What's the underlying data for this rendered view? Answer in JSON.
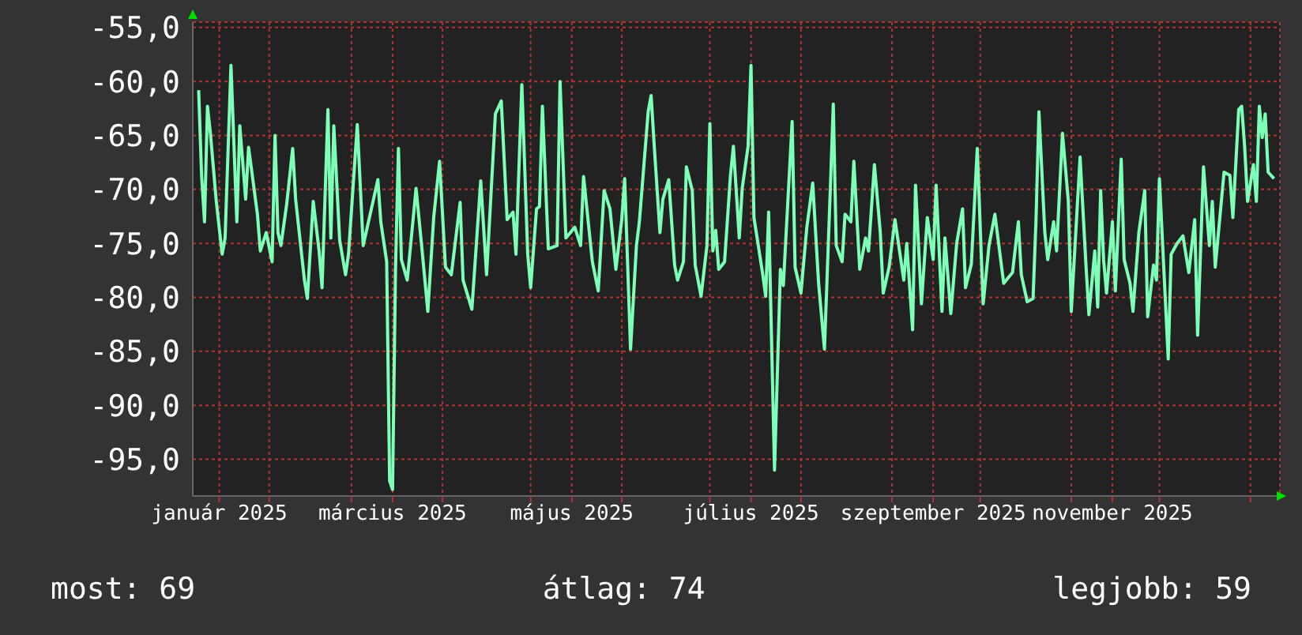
{
  "chart_data": {
    "type": "line",
    "annotations": [
      "most: 69",
      "átlag: 74",
      "legjobb: 59"
    ],
    "xlim": [
      "2025-01-06",
      "2026-01-11"
    ],
    "xticks": [
      {
        "value": "2025-01-15",
        "label": "január 2025"
      },
      {
        "value": "2025-02-01",
        "label": null
      },
      {
        "value": "2025-03-01",
        "label": null
      },
      {
        "value": "2025-03-15",
        "label": "március 2025"
      },
      {
        "value": "2025-04-01",
        "label": null
      },
      {
        "value": "2025-05-01",
        "label": null
      },
      {
        "value": "2025-05-15",
        "label": "május 2025"
      },
      {
        "value": "2025-06-01",
        "label": null
      },
      {
        "value": "2025-07-01",
        "label": null
      },
      {
        "value": "2025-07-15",
        "label": "július 2025"
      },
      {
        "value": "2025-08-01",
        "label": null
      },
      {
        "value": "2025-09-01",
        "label": null
      },
      {
        "value": "2025-09-15",
        "label": "szeptember 2025"
      },
      {
        "value": "2025-10-01",
        "label": null
      },
      {
        "value": "2025-11-01",
        "label": null
      },
      {
        "value": "2025-11-15",
        "label": "november 2025"
      },
      {
        "value": "2025-12-01",
        "label": null
      },
      {
        "value": "2026-01-01",
        "label": null
      }
    ],
    "ylim": [
      -98.4,
      -54.5
    ],
    "yticks": [
      {
        "value": -55,
        "label": "-55,0"
      },
      {
        "value": -60,
        "label": "-60,0"
      },
      {
        "value": -65,
        "label": "-65,0"
      },
      {
        "value": -70,
        "label": "-70,0"
      },
      {
        "value": -75,
        "label": "-75,0"
      },
      {
        "value": -80,
        "label": "-80,0"
      },
      {
        "value": -85,
        "label": "-85,0"
      },
      {
        "value": -90,
        "label": "-90,0"
      },
      {
        "value": -95,
        "label": "-95,0"
      }
    ],
    "grid": true,
    "x": [
      "2025-01-08",
      "2025-01-09",
      "2025-01-10",
      "2025-01-11",
      "2025-01-12",
      "2025-01-14",
      "2025-01-16",
      "2025-01-17",
      "2025-01-19",
      "2025-01-21",
      "2025-01-22",
      "2025-01-24",
      "2025-01-25",
      "2025-01-28",
      "2025-01-29",
      "2025-01-31",
      "2025-02-02",
      "2025-02-03",
      "2025-02-04",
      "2025-02-05",
      "2025-02-07",
      "2025-02-09",
      "2025-02-10",
      "2025-02-13",
      "2025-02-14",
      "2025-02-16",
      "2025-02-18",
      "2025-02-19",
      "2025-02-21",
      "2025-02-22",
      "2025-02-23",
      "2025-02-25",
      "2025-02-27",
      "2025-02-28",
      "2025-03-03",
      "2025-03-05",
      "2025-03-10",
      "2025-03-11",
      "2025-03-13",
      "2025-03-14",
      "2025-03-15",
      "2025-03-16",
      "2025-03-17",
      "2025-03-18",
      "2025-03-20",
      "2025-03-23",
      "2025-03-25",
      "2025-03-27",
      "2025-03-29",
      "2025-03-31",
      "2025-04-02",
      "2025-04-04",
      "2025-04-07",
      "2025-04-08",
      "2025-04-11",
      "2025-04-14",
      "2025-04-16",
      "2025-04-19",
      "2025-04-21",
      "2025-04-23",
      "2025-04-25",
      "2025-04-26",
      "2025-04-28",
      "2025-04-30",
      "2025-05-01",
      "2025-05-03",
      "2025-05-04",
      "2025-05-05",
      "2025-05-07",
      "2025-05-10",
      "2025-05-11",
      "2025-05-13",
      "2025-05-16",
      "2025-05-18",
      "2025-05-19",
      "2025-05-22",
      "2025-05-24",
      "2025-05-26",
      "2025-05-28",
      "2025-05-30",
      "2025-06-01",
      "2025-06-02",
      "2025-06-04",
      "2025-06-06",
      "2025-06-07",
      "2025-06-10",
      "2025-06-11",
      "2025-06-12",
      "2025-06-14",
      "2025-06-15",
      "2025-06-17",
      "2025-06-19",
      "2025-06-20",
      "2025-06-22",
      "2025-06-23",
      "2025-06-25",
      "2025-06-26",
      "2025-06-28",
      "2025-06-30",
      "2025-07-01",
      "2025-07-02",
      "2025-07-03",
      "2025-07-04",
      "2025-07-06",
      "2025-07-08",
      "2025-07-09",
      "2025-07-11",
      "2025-07-12",
      "2025-07-14",
      "2025-07-15",
      "2025-07-16",
      "2025-07-19",
      "2025-07-20",
      "2025-07-21",
      "2025-07-23",
      "2025-07-25",
      "2025-07-26",
      "2025-07-29",
      "2025-07-30",
      "2025-08-01",
      "2025-08-03",
      "2025-08-05",
      "2025-08-07",
      "2025-08-09",
      "2025-08-11",
      "2025-08-12",
      "2025-08-13",
      "2025-08-15",
      "2025-08-16",
      "2025-08-18",
      "2025-08-19",
      "2025-08-21",
      "2025-08-23",
      "2025-08-24",
      "2025-08-26",
      "2025-08-28",
      "2025-08-29",
      "2025-08-31",
      "2025-09-02",
      "2025-09-05",
      "2025-09-06",
      "2025-09-08",
      "2025-09-09",
      "2025-09-11",
      "2025-09-13",
      "2025-09-15",
      "2025-09-16",
      "2025-09-18",
      "2025-09-19",
      "2025-09-21",
      "2025-09-23",
      "2025-09-25",
      "2025-09-26",
      "2025-09-28",
      "2025-09-30",
      "2025-10-02",
      "2025-10-04",
      "2025-10-06",
      "2025-10-09",
      "2025-10-12",
      "2025-10-14",
      "2025-10-15",
      "2025-10-17",
      "2025-10-19",
      "2025-10-20",
      "2025-10-21",
      "2025-10-23",
      "2025-10-24",
      "2025-10-26",
      "2025-10-27",
      "2025-10-29",
      "2025-10-31",
      "2025-11-01",
      "2025-11-04",
      "2025-11-06",
      "2025-11-07",
      "2025-11-09",
      "2025-11-10",
      "2025-11-11",
      "2025-11-12",
      "2025-11-13",
      "2025-11-15",
      "2025-11-16",
      "2025-11-18",
      "2025-11-19",
      "2025-11-21",
      "2025-11-22",
      "2025-11-24",
      "2025-11-26",
      "2025-11-27",
      "2025-11-29",
      "2025-11-30",
      "2025-12-01",
      "2025-12-04",
      "2025-12-05",
      "2025-12-07",
      "2025-12-09",
      "2025-12-11",
      "2025-12-13",
      "2025-12-14",
      "2025-12-16",
      "2025-12-18",
      "2025-12-19",
      "2025-12-20",
      "2025-12-23",
      "2025-12-25",
      "2025-12-26",
      "2025-12-28",
      "2025-12-29",
      "2025-12-30",
      "2025-12-31",
      "2026-01-02",
      "2026-01-03",
      "2026-01-04",
      "2026-01-05",
      "2026-01-06",
      "2026-01-07",
      "2026-01-09"
    ],
    "series": [
      {
        "color": "#7dffb8",
        "values": [
          -60.8,
          -68.7,
          -73.0,
          -62.3,
          -64.8,
          -71.1,
          -76.0,
          -74.5,
          -58.5,
          -73.0,
          -64.1,
          -70.9,
          -66.1,
          -72.3,
          -75.7,
          -74.0,
          -76.7,
          -65.0,
          -74.0,
          -75.2,
          -71.3,
          -66.2,
          -70.9,
          -78.4,
          -80.1,
          -71.1,
          -75.7,
          -79.1,
          -62.6,
          -74.5,
          -64.1,
          -74.7,
          -77.9,
          -76.0,
          -64.0,
          -75.2,
          -69.1,
          -73.0,
          -76.7,
          -97.0,
          -97.8,
          -77.4,
          -66.2,
          -76.5,
          -78.4,
          -69.9,
          -75.5,
          -81.3,
          -72.6,
          -67.4,
          -77.2,
          -77.9,
          -71.2,
          -78.4,
          -81.1,
          -69.2,
          -77.9,
          -63.0,
          -61.8,
          -72.8,
          -72.1,
          -76.0,
          -60.3,
          -76.0,
          -79.1,
          -71.8,
          -71.6,
          -62.3,
          -75.5,
          -75.2,
          -60.0,
          -74.5,
          -73.5,
          -75.2,
          -68.8,
          -76.7,
          -79.4,
          -70.1,
          -71.8,
          -77.4,
          -72.8,
          -69.0,
          -84.8,
          -75.2,
          -73.0,
          -62.8,
          -61.3,
          -65.7,
          -74.0,
          -70.9,
          -69.1,
          -77.0,
          -78.4,
          -76.7,
          -67.9,
          -70.1,
          -77.0,
          -79.9,
          -75.2,
          -63.9,
          -75.7,
          -73.8,
          -77.4,
          -76.7,
          -68.7,
          -66.0,
          -74.5,
          -69.9,
          -66.0,
          -58.5,
          -72.6,
          -77.9,
          -79.9,
          -72.1,
          -96.0,
          -77.4,
          -78.9,
          -63.7,
          -77.2,
          -79.6,
          -73.5,
          -69.4,
          -78.7,
          -84.8,
          -69.9,
          -62.1,
          -75.2,
          -76.7,
          -72.3,
          -73.0,
          -67.4,
          -77.4,
          -74.5,
          -75.7,
          -67.7,
          -74.0,
          -79.6,
          -77.2,
          -72.8,
          -78.4,
          -75.0,
          -83.0,
          -69.6,
          -80.6,
          -72.6,
          -76.5,
          -69.6,
          -81.3,
          -74.5,
          -81.5,
          -75.0,
          -71.8,
          -79.1,
          -76.9,
          -66.2,
          -80.6,
          -75.2,
          -72.3,
          -78.7,
          -77.7,
          -73.0,
          -77.9,
          -80.4,
          -80.1,
          -72.8,
          -62.8,
          -74.0,
          -76.5,
          -73.0,
          -75.7,
          -64.8,
          -71.1,
          -81.3,
          -67.0,
          -77.0,
          -81.6,
          -75.7,
          -80.9,
          -70.1,
          -76.5,
          -79.6,
          -73.0,
          -79.4,
          -67.2,
          -76.5,
          -78.7,
          -81.3,
          -74.0,
          -70.1,
          -81.8,
          -77.0,
          -78.4,
          -69.0,
          -85.7,
          -76.0,
          -75.0,
          -74.3,
          -77.7,
          -72.8,
          -83.5,
          -67.9,
          -75.2,
          -71.1,
          -77.2,
          -68.4,
          -68.7,
          -72.6,
          -62.6,
          -62.3,
          -66.0,
          -71.1,
          -67.7,
          -71.1,
          -62.3,
          -65.2,
          -63.0,
          -68.4,
          -69.0
        ]
      }
    ]
  }
}
